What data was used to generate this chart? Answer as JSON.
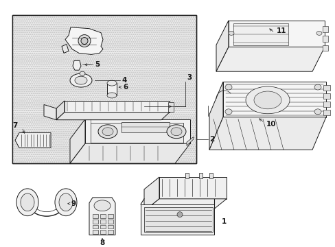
{
  "bg_color": "#ffffff",
  "box_bg": "#e8e8e8",
  "lc": "#1a1a1a",
  "lw": 0.7,
  "fig_width": 4.89,
  "fig_height": 3.6,
  "dpi": 100
}
